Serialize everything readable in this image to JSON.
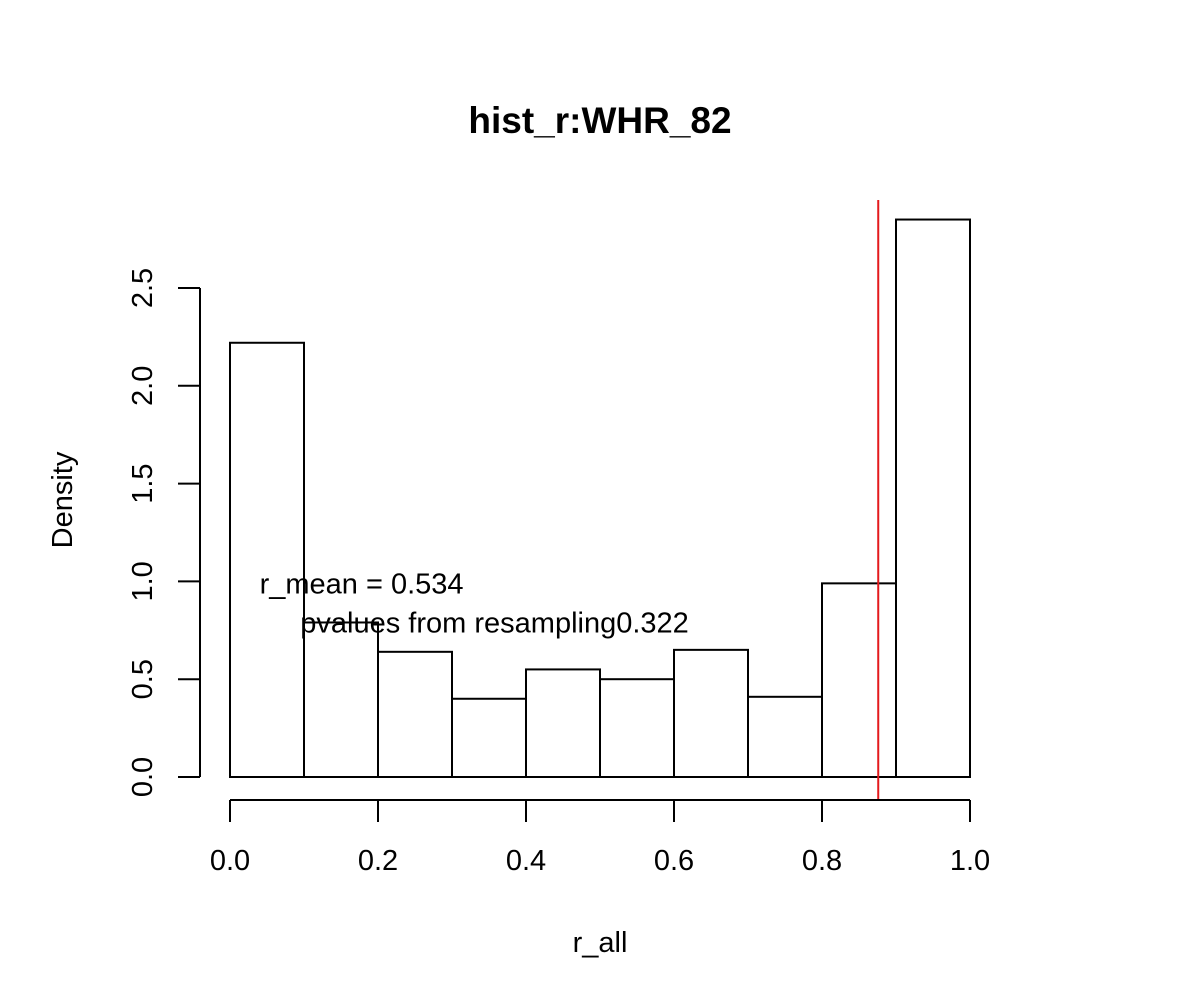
{
  "chart_data": {
    "type": "bar",
    "title": "hist_r:WHR_82",
    "xlabel": "r_all",
    "ylabel": "Density",
    "xlim": [
      0,
      1
    ],
    "ylim": [
      0,
      2.9
    ],
    "bin_edges": [
      0.0,
      0.1,
      0.2,
      0.3,
      0.4,
      0.5,
      0.6,
      0.7,
      0.8,
      0.9,
      1.0
    ],
    "values": [
      2.22,
      0.79,
      0.64,
      0.4,
      0.55,
      0.5,
      0.65,
      0.41,
      0.99,
      2.85
    ],
    "x_ticks": [
      "0.0",
      "0.2",
      "0.4",
      "0.6",
      "0.8",
      "1.0"
    ],
    "y_ticks": [
      "0.0",
      "0.5",
      "1.0",
      "1.5",
      "2.0",
      "2.5"
    ],
    "reference_line": {
      "x": 0.876,
      "color": "#e41a1c"
    },
    "annotations": [
      {
        "text": "r_mean = 0.534",
        "x": 0.04,
        "y": 0.99
      },
      {
        "text": "pvalues from resampling0.322",
        "x": 0.095,
        "y": 0.79
      }
    ],
    "grid": false,
    "legend": "none"
  }
}
